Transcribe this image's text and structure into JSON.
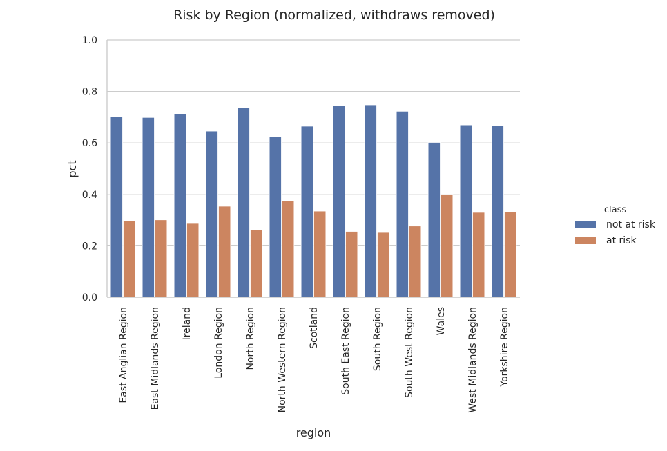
{
  "chart_data": {
    "type": "bar",
    "title": "Risk by Region (normalized, withdraws removed)",
    "xlabel": "region",
    "ylabel": "pct",
    "ylim": [
      0,
      1.0
    ],
    "yticks": [
      "0.0",
      "0.2",
      "0.4",
      "0.6",
      "0.8",
      "1.0"
    ],
    "grid": "horizontal",
    "legend_placement": "right",
    "legend_title": "class",
    "categories": [
      "East Anglian Region",
      "East Midlands Region",
      "Ireland",
      "London Region",
      "North Region",
      "North Western Region",
      "Scotland",
      "South East Region",
      "South Region",
      "South West Region",
      "Wales",
      "West Midlands Region",
      "Yorkshire Region"
    ],
    "series": [
      {
        "name": "not at risk",
        "color": "#5573a8",
        "values": [
          0.702,
          0.699,
          0.713,
          0.646,
          0.737,
          0.624,
          0.665,
          0.744,
          0.748,
          0.723,
          0.602,
          0.67,
          0.667
        ]
      },
      {
        "name": "at risk",
        "color": "#cc8560",
        "values": [
          0.298,
          0.301,
          0.287,
          0.354,
          0.263,
          0.376,
          0.335,
          0.256,
          0.252,
          0.277,
          0.398,
          0.33,
          0.333
        ]
      }
    ]
  }
}
